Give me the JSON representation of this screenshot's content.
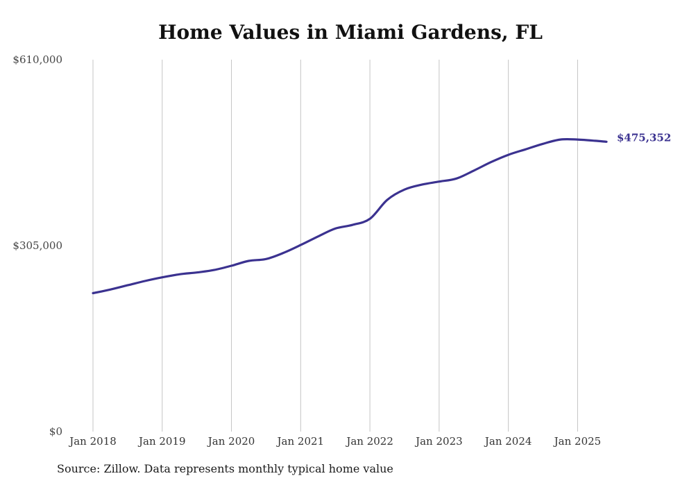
{
  "chart_data": {
    "type": "line",
    "title": "Home Values in Miami Gardens, FL",
    "xlabel": "",
    "ylabel": "",
    "ylim": [
      0,
      610000
    ],
    "y_ticks": [
      0,
      305000,
      610000
    ],
    "y_tick_labels": [
      "$0",
      "$305,000",
      "$610,000"
    ],
    "x_ticks": [
      2018,
      2019,
      2020,
      2021,
      2022,
      2023,
      2024,
      2025
    ],
    "x_tick_labels": [
      "Jan 2018",
      "Jan 2019",
      "Jan 2020",
      "Jan 2021",
      "Jan 2022",
      "Jan 2023",
      "Jan 2024",
      "Jan 2025"
    ],
    "xlim": [
      "2018-01",
      "2025-06"
    ],
    "grid": "vertical lines at each January",
    "line_color": "#3b3290",
    "series": [
      {
        "x": [
          "2018-01",
          "2018-04",
          "2018-07",
          "2018-10",
          "2019-01",
          "2019-04",
          "2019-07",
          "2019-10",
          "2020-01",
          "2020-04",
          "2020-07",
          "2020-10",
          "2021-01",
          "2021-04",
          "2021-07",
          "2021-10",
          "2022-01",
          "2022-04",
          "2022-07",
          "2022-10",
          "2023-01",
          "2023-04",
          "2023-07",
          "2023-10",
          "2024-01",
          "2024-04",
          "2024-07",
          "2024-10",
          "2025-01",
          "2025-04",
          "2025-06"
        ],
        "values": [
          227000,
          233000,
          240000,
          247000,
          253000,
          258000,
          261000,
          265000,
          272000,
          280000,
          283000,
          293000,
          306000,
          320000,
          333000,
          339000,
          349000,
          380000,
          397000,
          405000,
          410000,
          415000,
          428000,
          442000,
          454000,
          463000,
          472000,
          479000,
          479000,
          477000,
          475352
        ]
      }
    ],
    "end_label": "$475,352",
    "source": "Source: Zillow. Data represents monthly typical home value"
  }
}
